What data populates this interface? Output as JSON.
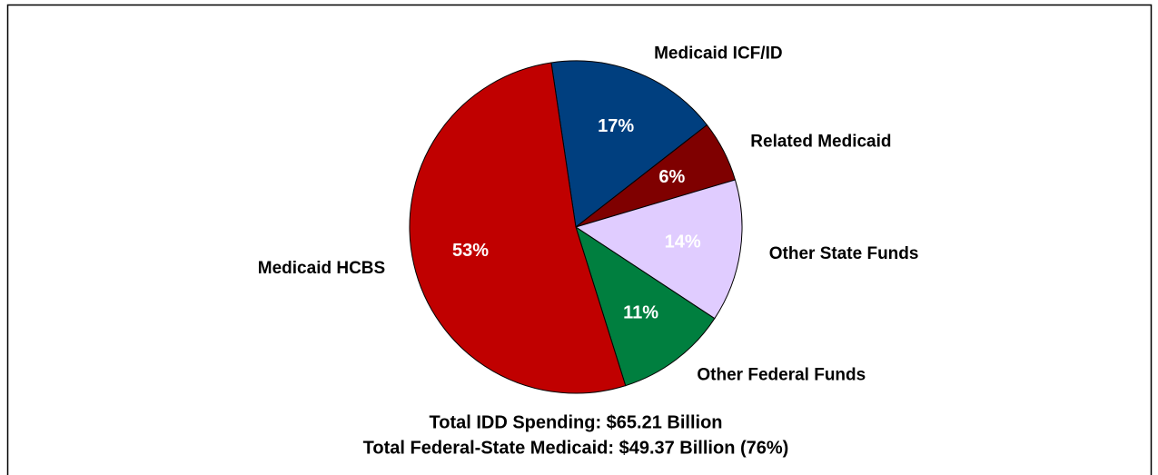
{
  "chart_data": {
    "type": "pie",
    "categories": [
      "Medicaid ICF/ID",
      "Related Medicaid",
      "Other State Funds",
      "Other Federal Funds",
      "Medicaid HCBS"
    ],
    "values": [
      17,
      6,
      14,
      11,
      53
    ],
    "value_labels": [
      "17%",
      "6%",
      "14%",
      "11%",
      "53%"
    ],
    "colors": [
      "#003f7f",
      "#7f0000",
      "#e0ccff",
      "#007f3f",
      "#c00000"
    ],
    "annotations": [
      "Total IDD Spending: $65.21 Billion",
      "Total Federal-State Medicaid: $49.37 Billion (76%)"
    ]
  }
}
